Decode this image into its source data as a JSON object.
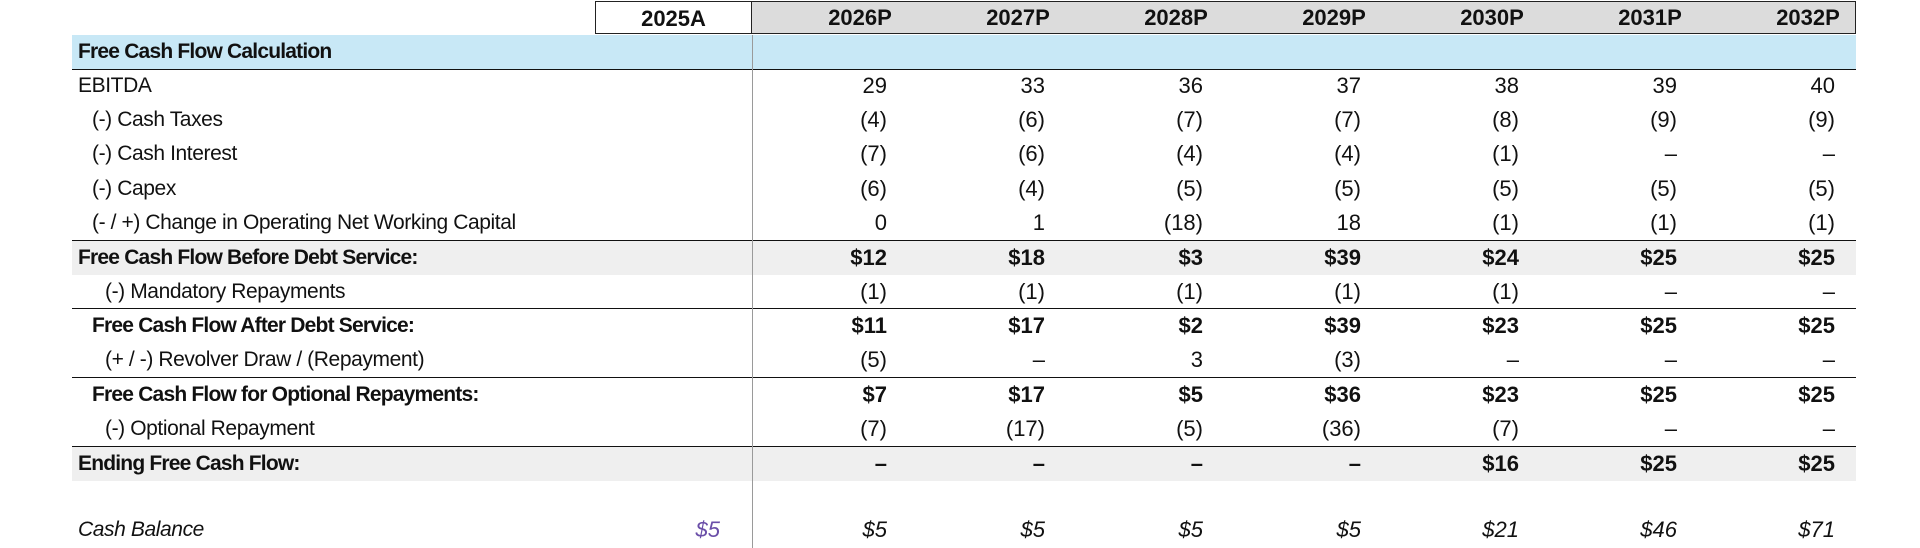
{
  "columns": [
    "2025A",
    "2026P",
    "2027P",
    "2028P",
    "2029P",
    "2030P",
    "2031P",
    "2032P"
  ],
  "section_title": "Free Cash Flow Calculation",
  "rows": [
    {
      "label": "EBITDA",
      "style": "normal",
      "values": [
        "",
        "29",
        "33",
        "36",
        "37",
        "38",
        "39",
        "40"
      ]
    },
    {
      "label": "(-) Cash Taxes",
      "style": "indent",
      "values": [
        "",
        "(4)",
        "(6)",
        "(7)",
        "(7)",
        "(8)",
        "(9)",
        "(9)"
      ]
    },
    {
      "label": "(-) Cash Interest",
      "style": "indent",
      "values": [
        "",
        "(7)",
        "(6)",
        "(4)",
        "(4)",
        "(1)",
        "–",
        "–"
      ]
    },
    {
      "label": "(-) Capex",
      "style": "indent",
      "values": [
        "",
        "(6)",
        "(4)",
        "(5)",
        "(5)",
        "(5)",
        "(5)",
        "(5)"
      ]
    },
    {
      "label": "(- / +) Change in Operating Net Working Capital",
      "style": "indent",
      "values": [
        "",
        "0",
        "1",
        "(18)",
        "18",
        "(1)",
        "(1)",
        "(1)"
      ]
    },
    {
      "label": "Free Cash Flow Before Debt Service:",
      "style": "bold",
      "values": [
        "",
        "$12",
        "$18",
        "$3",
        "$39",
        "$24",
        "$25",
        "$25"
      ]
    },
    {
      "label": "(-) Mandatory Repayments",
      "style": "indent2",
      "values": [
        "",
        "(1)",
        "(1)",
        "(1)",
        "(1)",
        "(1)",
        "–",
        "–"
      ]
    },
    {
      "label": "Free Cash Flow After Debt Service:",
      "style": "bold-indent",
      "values": [
        "",
        "$11",
        "$17",
        "$2",
        "$39",
        "$23",
        "$25",
        "$25"
      ]
    },
    {
      "label": "(+ / -) Revolver Draw / (Repayment)",
      "style": "indent2",
      "values": [
        "",
        "(5)",
        "–",
        "3",
        "(3)",
        "–",
        "–",
        "–"
      ]
    },
    {
      "label": "Free Cash Flow for Optional Repayments:",
      "style": "bold-indent",
      "values": [
        "",
        "$7",
        "$17",
        "$5",
        "$36",
        "$23",
        "$25",
        "$25"
      ]
    },
    {
      "label": "(-) Optional Repayment",
      "style": "indent2",
      "values": [
        "",
        "(7)",
        "(17)",
        "(5)",
        "(36)",
        "(7)",
        "–",
        "–"
      ]
    },
    {
      "label": "Ending Free Cash Flow:",
      "style": "bold",
      "values": [
        "",
        "–",
        "–",
        "–",
        "–",
        "$16",
        "$25",
        "$25"
      ]
    },
    {
      "label": "Cash Balance",
      "style": "italic",
      "values": [
        "$5",
        "$5",
        "$5",
        "$5",
        "$5",
        "$21",
        "$46",
        "$71"
      ]
    }
  ],
  "colors": {
    "header_bg": "#dcdcdc",
    "section_band": "#c8e8f6",
    "subtotal_band": "#efefef",
    "cash_2025": "#6a4ea8"
  }
}
